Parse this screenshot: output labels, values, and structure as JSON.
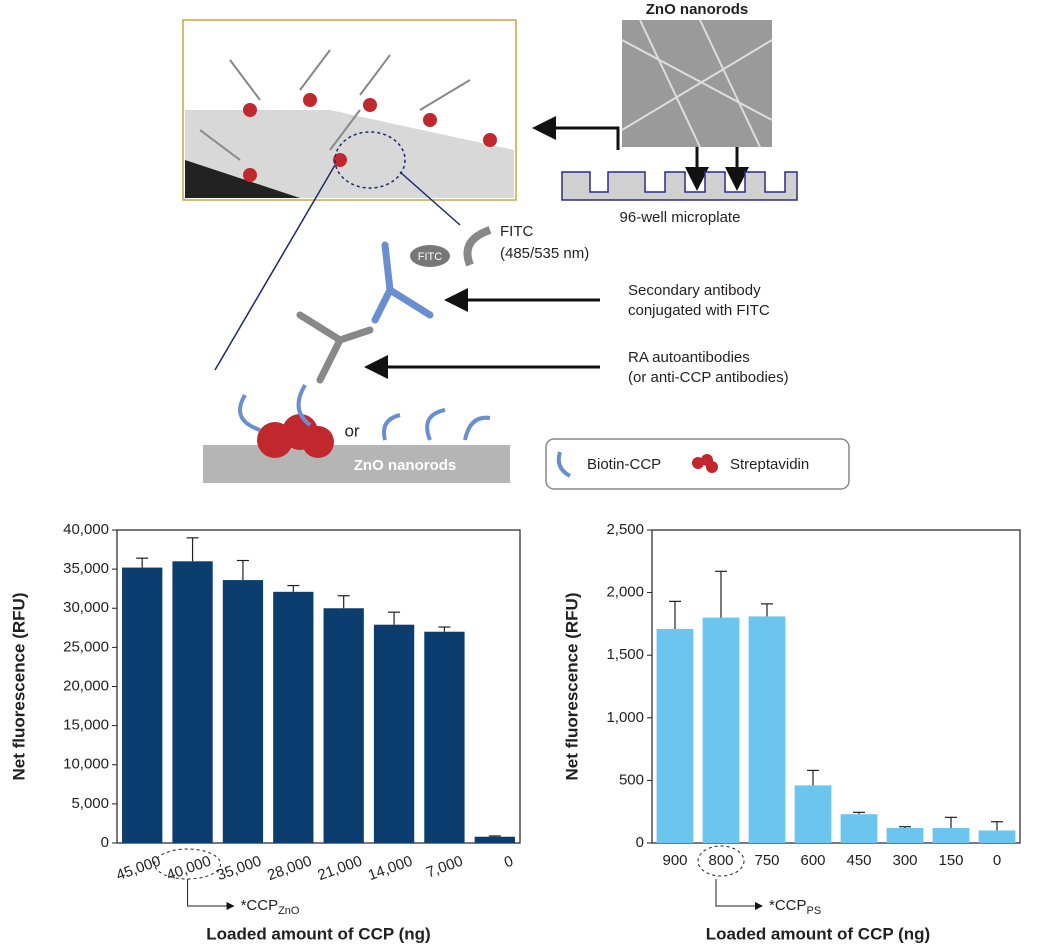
{
  "diagram": {
    "sem_title": "ZnO nanorods",
    "microplate": "96-well microplate",
    "fitc_badge": "FITC",
    "fitc_label": [
      "FITC",
      "(485/535 nm)"
    ],
    "secondary_label": [
      "Secondary antibody",
      "conjugated with FITC"
    ],
    "ra_label": [
      "RA autoantibodies",
      "(or anti-CCP antibodies)"
    ],
    "or": "or",
    "substrate": "ZnO nanorods",
    "legend": [
      "Biotin-CCP",
      "Streptavidin"
    ]
  },
  "chart_data": [
    {
      "type": "bar",
      "color": "#0b3d6f",
      "ylabel": "Net fluorescence (RFU)",
      "xlabel": "Loaded amount of CCP (ng)",
      "annotation": {
        "text": "*CCP",
        "subscript": "ZnO"
      },
      "categories": [
        "45,000",
        "40,000",
        "35,000",
        "28,000",
        "21,000",
        "14,000",
        "7,000",
        "0"
      ],
      "values": [
        35200,
        36000,
        33600,
        32100,
        30000,
        27900,
        27000,
        800
      ],
      "errors": [
        1200,
        3000,
        2500,
        800,
        1600,
        1600,
        600,
        100
      ],
      "ylim": [
        0,
        40000
      ],
      "yticks": [
        0,
        {
          "value": 5000,
          "label": "5,000"
        },
        {
          "value": 10000,
          "label": "10,000"
        },
        {
          "value": 15000,
          "label": "15,000"
        },
        {
          "value": 20000,
          "label": "20,000"
        },
        {
          "value": 25000,
          "label": "25,000"
        },
        {
          "value": 30000,
          "label": "30,000"
        },
        {
          "value": 35000,
          "label": "35,000"
        },
        {
          "value": 40000,
          "label": "40,000"
        }
      ]
    },
    {
      "type": "bar",
      "color": "#6cc5ee",
      "ylabel": "Net fluorescence (RFU)",
      "xlabel": "Loaded amount of CCP (ng)",
      "annotation": {
        "text": "*CCP",
        "subscript": "PS"
      },
      "categories": [
        "900",
        "800",
        "750",
        "600",
        "450",
        "300",
        "150",
        "0"
      ],
      "values": [
        1710,
        1800,
        1810,
        460,
        230,
        120,
        120,
        100
      ],
      "errors": [
        220,
        370,
        100,
        120,
        15,
        10,
        85,
        70
      ],
      "ylim": [
        0,
        2500
      ],
      "yticks": [
        0,
        500,
        {
          "value": 1000,
          "label": "1,000"
        },
        {
          "value": 1500,
          "label": "1,500"
        },
        {
          "value": 2000,
          "label": "2,000"
        },
        {
          "value": 2500,
          "label": "2,500"
        }
      ]
    }
  ]
}
